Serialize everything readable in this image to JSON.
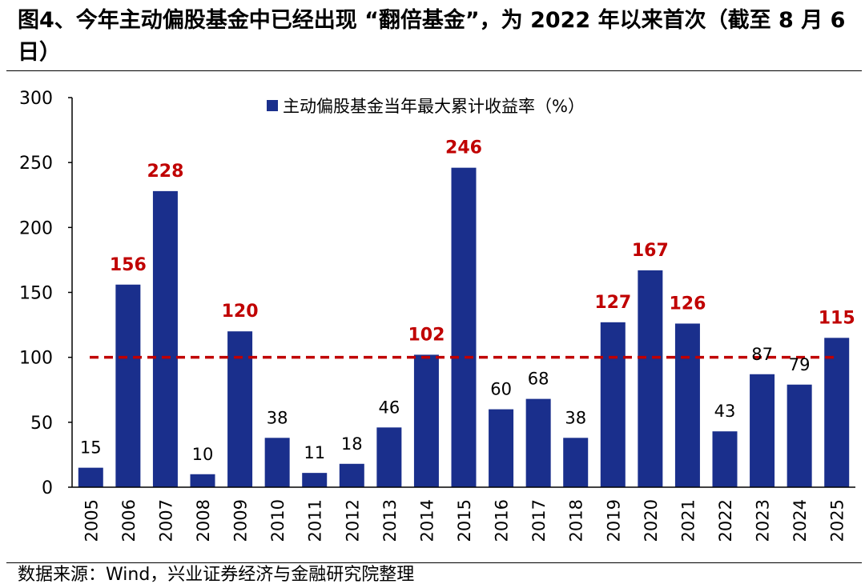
{
  "figure": {
    "title": "图4、今年主动偏股基金中已经出现 “翻倍基金”，为 2022 年以来首次（截至 8 月 6 日）",
    "source": "数据来源：Wind，兴业证券经济与金融研究院整理"
  },
  "colors": {
    "bar": "#1a2f8c",
    "highlight_label": "#c00000",
    "normal_label": "#000000",
    "reference_line": "#c00000"
  },
  "chart_data": {
    "type": "bar",
    "categories": [
      "2005",
      "2006",
      "2007",
      "2008",
      "2009",
      "2010",
      "2011",
      "2012",
      "2013",
      "2014",
      "2015",
      "2016",
      "2017",
      "2018",
      "2019",
      "2020",
      "2021",
      "2022",
      "2023",
      "2024",
      "2025"
    ],
    "series": [
      {
        "name": "主动偏股基金当年最大累计收益率（%）",
        "values": [
          15,
          156,
          228,
          10,
          120,
          38,
          11,
          18,
          46,
          102,
          246,
          60,
          68,
          38,
          127,
          167,
          126,
          43,
          87,
          79,
          115
        ]
      }
    ],
    "ylim": [
      0,
      300
    ],
    "yticks": [
      0,
      50,
      100,
      150,
      200,
      250,
      300
    ],
    "reference_line": {
      "value": 100,
      "style": "dashed"
    },
    "label_highlight_threshold": 100,
    "legend": "top-center",
    "grid": false,
    "xlabel": "",
    "ylabel": ""
  }
}
